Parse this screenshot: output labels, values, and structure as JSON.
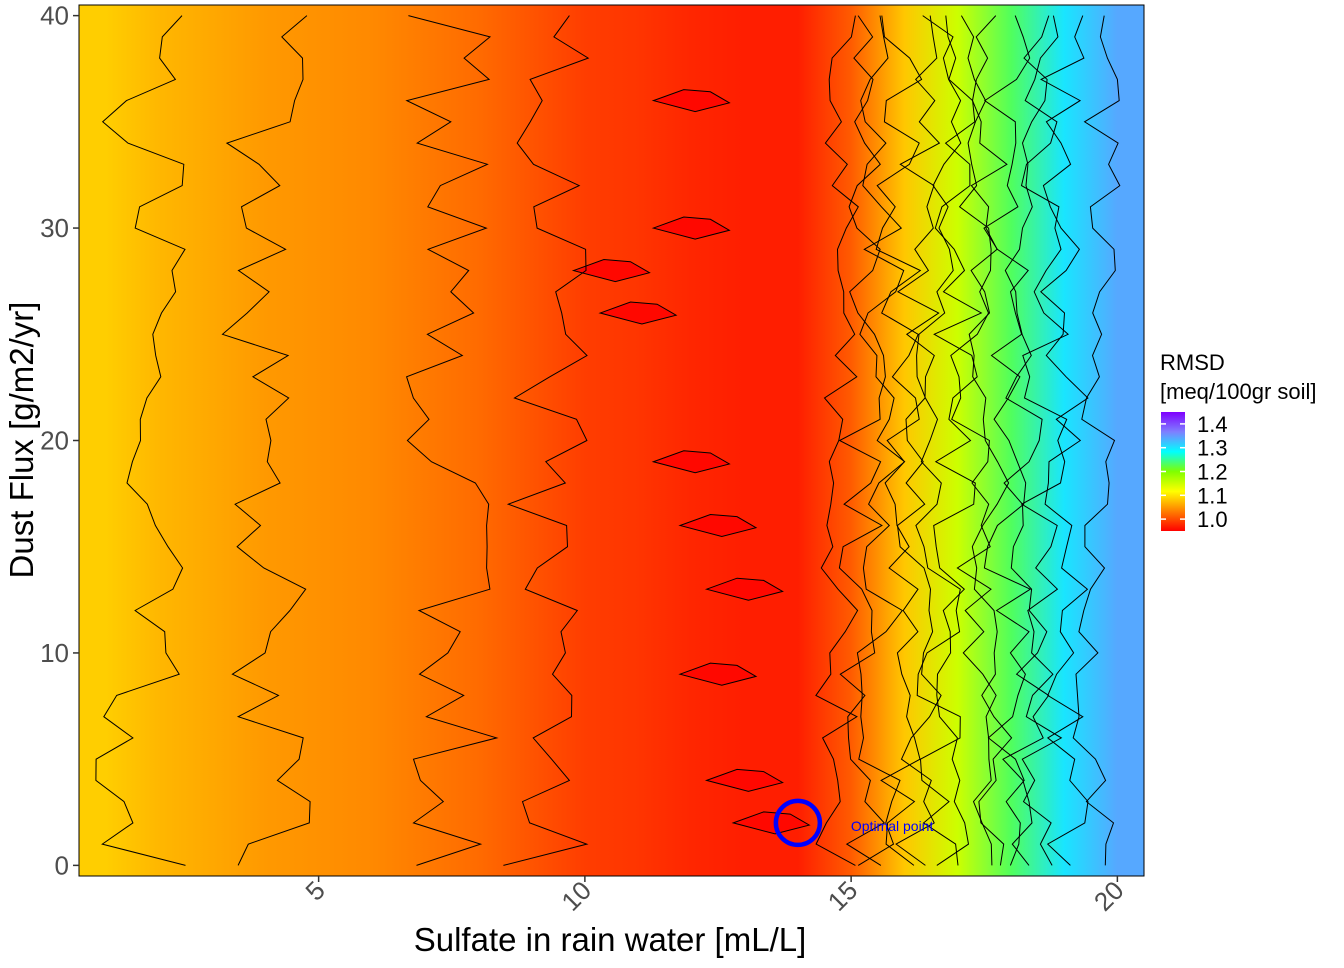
{
  "chart_data": {
    "type": "heatmap",
    "subtype": "filled contour with contour lines",
    "title": "",
    "xlabel": "Sulfate in rain water [mL/L]",
    "ylabel": "Dust Flux [g/m2/yr]",
    "xlim": [
      0.5,
      20.5
    ],
    "ylim": [
      -0.5,
      40.5
    ],
    "x_ticks": [
      5,
      10,
      15,
      20
    ],
    "x_tick_labels": [
      "5",
      "10",
      "15",
      "20"
    ],
    "x_tick_label_rotation": "45 degrees",
    "y_ticks": [
      0,
      10,
      20,
      30,
      40
    ],
    "y_tick_labels": [
      "0",
      "10",
      "20",
      "30",
      "40"
    ],
    "grid": false,
    "legend": {
      "title_line1": "RMSD",
      "title_line2": "[meq/100gr soil]",
      "placement": "right",
      "type": "continuous colorbar",
      "range": [
        0.95,
        1.45
      ],
      "tick_values": [
        1.0,
        1.1,
        1.2,
        1.3,
        1.4
      ],
      "tick_labels": [
        "1.0",
        "1.1",
        "1.2",
        "1.3",
        "1.4"
      ],
      "colors": [
        "#ff0000",
        "#ff7f00",
        "#ffff00",
        "#7fff00",
        "#00ffff",
        "#7f7fff",
        "#7f00ff"
      ]
    },
    "column_profile": {
      "x": [
        1,
        2,
        3,
        4,
        5,
        6,
        7,
        8,
        9,
        10,
        11,
        12,
        13,
        14,
        15,
        16,
        17,
        18,
        19,
        20
      ],
      "rmsd": [
        1.085,
        1.07,
        1.06,
        1.05,
        1.045,
        1.04,
        1.03,
        1.02,
        1.005,
        0.99,
        0.985,
        0.975,
        0.97,
        0.97,
        1.01,
        1.08,
        1.15,
        1.23,
        1.3,
        1.34
      ]
    },
    "local_minima": [
      {
        "x": 12,
        "y": 30
      },
      {
        "x": 12,
        "y": 36
      },
      {
        "x": 10.5,
        "y": 28
      },
      {
        "x": 11,
        "y": 26
      },
      {
        "x": 12,
        "y": 19
      },
      {
        "x": 12.5,
        "y": 16
      },
      {
        "x": 13,
        "y": 13
      },
      {
        "x": 12.5,
        "y": 9
      },
      {
        "x": 13,
        "y": 4
      },
      {
        "x": 13.5,
        "y": 2
      }
    ],
    "annotation": {
      "label": "Optimal point",
      "x": 14,
      "y": 2,
      "marker": "open circle",
      "color": "#0000ff"
    }
  }
}
